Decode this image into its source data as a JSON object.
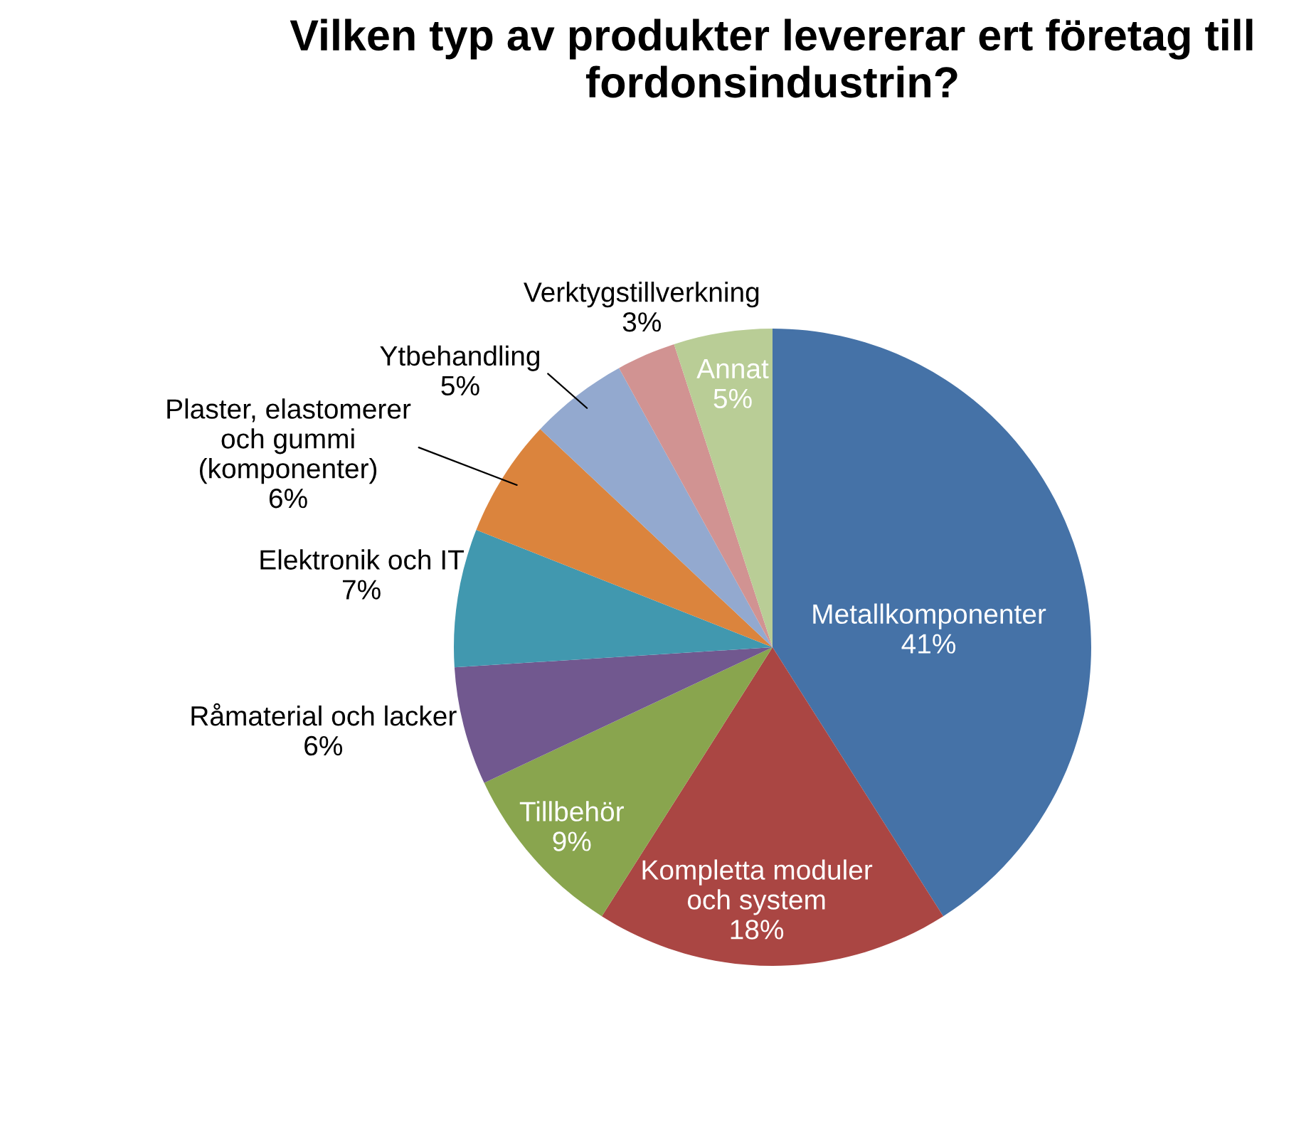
{
  "chart_data": {
    "type": "pie",
    "title": "Vilken typ av produkter levererar ert företag till fordonsindustrin?",
    "categories": [
      "Metallkomponenter",
      "Kompletta moduler och system",
      "Tillbehör",
      "Råmaterial och lacker",
      "Elektronik och IT",
      "Plaster, elastomerer och gummi (komponenter)",
      "Ytbehandling",
      "Verktygstillverkning",
      "Annat"
    ],
    "values": [
      41,
      18,
      9,
      6,
      7,
      6,
      5,
      3,
      5
    ],
    "colors": [
      "#4572a7",
      "#aa4643",
      "#89a54e",
      "#71588f",
      "#4198af",
      "#db843d",
      "#93a9cf",
      "#d19392",
      "#b9cd96"
    ],
    "value_labels": [
      "41%",
      "18%",
      "9%",
      "6%",
      "7%",
      "6%",
      "5%",
      "3%",
      "5%"
    ],
    "legend": false
  }
}
